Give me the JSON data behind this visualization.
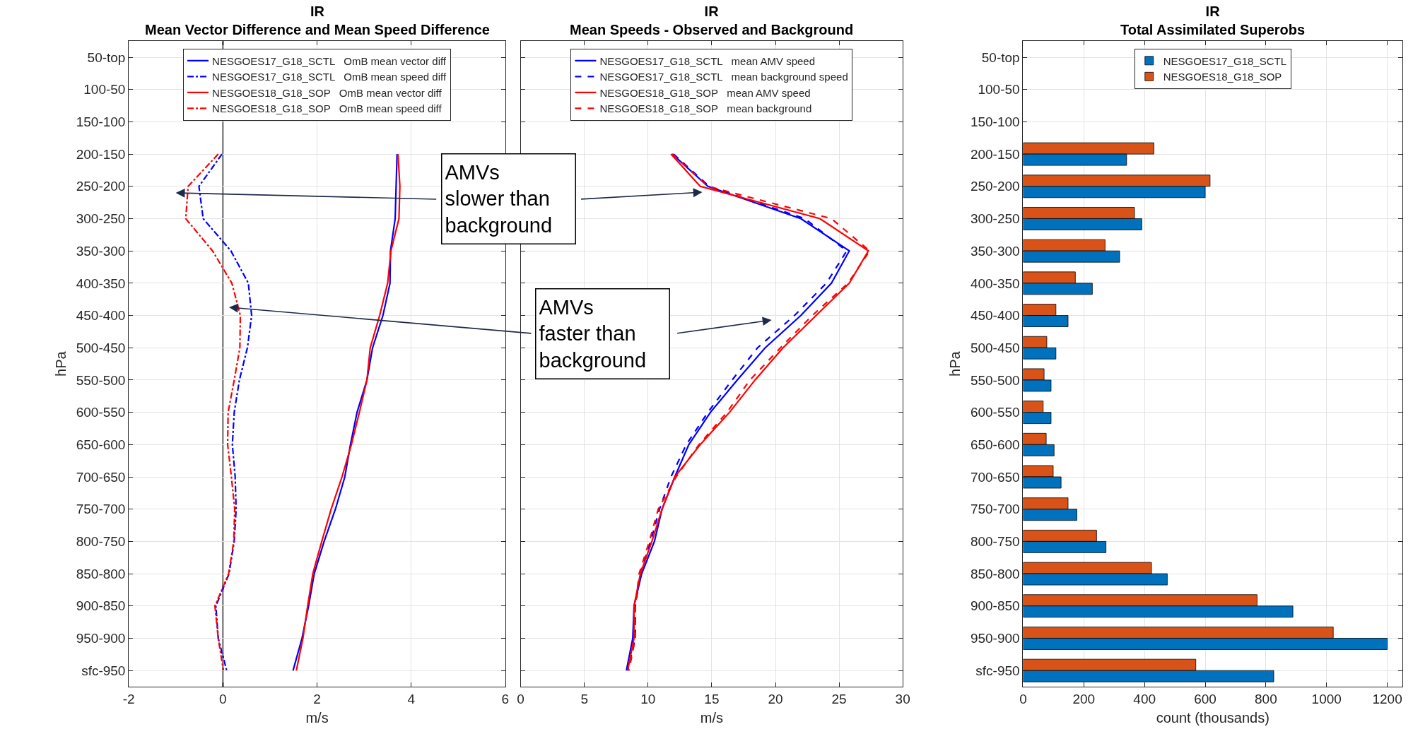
{
  "chart_data": [
    {
      "type": "line",
      "title": "IR",
      "subtitle": "Mean Vector Difference and Mean Speed Difference",
      "xlabel": "m/s",
      "ylabel": "hPa",
      "orientation": "horizontal",
      "categories": [
        "50-top",
        "100-50",
        "150-100",
        "200-150",
        "250-200",
        "300-250",
        "350-300",
        "400-350",
        "450-400",
        "500-450",
        "550-500",
        "600-550",
        "650-600",
        "700-650",
        "750-700",
        "800-750",
        "850-800",
        "900-850",
        "950-900",
        "sfc-950"
      ],
      "series": [
        {
          "name": "NESGOES17_G18_SCTL   OmB mean vector diff",
          "color": "#0000ff",
          "line_style": "solid",
          "values": [
            null,
            null,
            null,
            3.7,
            3.68,
            3.66,
            3.56,
            3.55,
            3.4,
            3.18,
            3.06,
            2.85,
            2.71,
            2.59,
            2.39,
            2.15,
            1.94,
            1.82,
            1.68,
            1.49
          ]
        },
        {
          "name": "NESGOES17_G18_SCTL   OmB mean speed diff",
          "color": "#0000ff",
          "line_style": "dashdot",
          "values": [
            null,
            null,
            null,
            -0.02,
            -0.51,
            -0.42,
            0.17,
            0.54,
            0.61,
            0.52,
            0.35,
            0.24,
            0.2,
            0.26,
            0.28,
            0.24,
            0.13,
            -0.15,
            -0.1,
            0.08
          ]
        },
        {
          "name": "NESGOES18_G18_SOP   OmB mean vector diff",
          "color": "#ff0000",
          "line_style": "solid",
          "values": [
            null,
            null,
            null,
            3.72,
            3.76,
            3.74,
            3.57,
            3.5,
            3.33,
            3.13,
            3.06,
            2.9,
            2.73,
            2.53,
            2.3,
            2.1,
            1.91,
            1.8,
            1.7,
            1.56
          ]
        },
        {
          "name": "NESGOES18_G18_SOP   OmB mean speed diff",
          "color": "#ff0000",
          "line_style": "dashdot",
          "values": [
            null,
            null,
            null,
            -0.1,
            -0.74,
            -0.79,
            -0.22,
            0.19,
            0.37,
            0.36,
            0.24,
            0.11,
            0.1,
            0.18,
            0.25,
            0.23,
            0.12,
            -0.17,
            -0.1,
            0.01
          ]
        }
      ],
      "xlim": [
        -2,
        6
      ],
      "xticks": [
        -2,
        0,
        2,
        4,
        6
      ],
      "grid": true,
      "legend": "top",
      "ref_lines": [
        {
          "axis": "x",
          "value": 0,
          "color": "#262626"
        }
      ],
      "annotations": [
        "AMVs\nslower than\nbackground",
        "AMVs\nfaster than\nbackground"
      ]
    },
    {
      "type": "line",
      "title": "IR",
      "subtitle": "Mean Speeds - Observed and Background",
      "xlabel": "m/s",
      "orientation": "horizontal",
      "categories": [
        null,
        null,
        null,
        null,
        null,
        null,
        null,
        null,
        null,
        null,
        null,
        null,
        null,
        null,
        null,
        null,
        null,
        null,
        null,
        null
      ],
      "series": [
        {
          "name": "NESGOES17_G18_SCTL   mean AMV speed",
          "color": "#0000ff",
          "line_style": "solid",
          "values": [
            null,
            null,
            null,
            11.9,
            14.7,
            22.0,
            25.8,
            24.4,
            22.0,
            19.2,
            17.0,
            14.9,
            13.2,
            12.1,
            11.1,
            10.5,
            9.5,
            8.9,
            8.8,
            8.3
          ]
        },
        {
          "name": "NESGOES17_G18_SCTL   mean background speed",
          "color": "#0000ff",
          "line_style": "dashed",
          "values": [
            null,
            null,
            null,
            12.0,
            14.8,
            22.3,
            25.6,
            24.0,
            21.5,
            18.6,
            16.6,
            14.7,
            13.0,
            11.8,
            10.9,
            10.2,
            9.4,
            9.0,
            9.0,
            8.4
          ]
        },
        {
          "name": "NESGOES18_G18_SOP   mean AMV speed",
          "color": "#ff0000",
          "line_style": "solid",
          "values": [
            null,
            null,
            null,
            11.8,
            14.1,
            23.5,
            27.3,
            25.8,
            23.2,
            20.6,
            18.4,
            16.4,
            14.1,
            12.1,
            11.1,
            10.3,
            9.4,
            8.9,
            8.9,
            8.4
          ]
        },
        {
          "name": "NESGOES18_G18_SOP   mean background",
          "color": "#ff0000",
          "line_style": "dashed",
          "values": [
            null,
            null,
            null,
            11.9,
            14.7,
            24.4,
            27.4,
            25.7,
            22.9,
            20.4,
            18.0,
            16.2,
            14.0,
            12.2,
            10.8,
            10.1,
            9.3,
            9.0,
            9.0,
            8.5
          ]
        }
      ],
      "xlim": [
        0,
        30
      ],
      "xticks": [
        0,
        5,
        10,
        15,
        20,
        25,
        30
      ],
      "grid": true,
      "legend": "top",
      "tick_labels": "x"
    },
    {
      "type": "bar",
      "title": "IR",
      "subtitle": "Total Assimilated Superobs",
      "xlabel": "count (thousands)",
      "ylabel": "hPa",
      "orientation": "horizontal",
      "categories": [
        "50-top",
        "100-50",
        "150-100",
        "200-150",
        "250-200",
        "300-250",
        "350-300",
        "400-350",
        "450-400",
        "500-450",
        "550-500",
        "600-550",
        "650-600",
        "700-650",
        "750-700",
        "800-750",
        "850-800",
        "900-850",
        "950-900",
        "sfc-950"
      ],
      "series": [
        {
          "name": "NESGOES17_G18_SCTL",
          "color": "#0072bd",
          "values": [
            null,
            null,
            null,
            341,
            600,
            391,
            318,
            228,
            148,
            108,
            92,
            92,
            102,
            125,
            177,
            273,
            475,
            889,
            1200,
            826
          ]
        },
        {
          "name": "NESGOES18_G18_SOP",
          "color": "#d95319",
          "values": [
            null,
            null,
            null,
            431,
            616,
            367,
            270,
            172,
            108,
            78,
            69,
            66,
            76,
            99,
            148,
            242,
            423,
            771,
            1022,
            569
          ]
        }
      ],
      "xlim": [
        0,
        1250
      ],
      "xticks": [
        0,
        200,
        400,
        600,
        800,
        1000,
        1200
      ],
      "grid": true,
      "legend": "top"
    }
  ]
}
